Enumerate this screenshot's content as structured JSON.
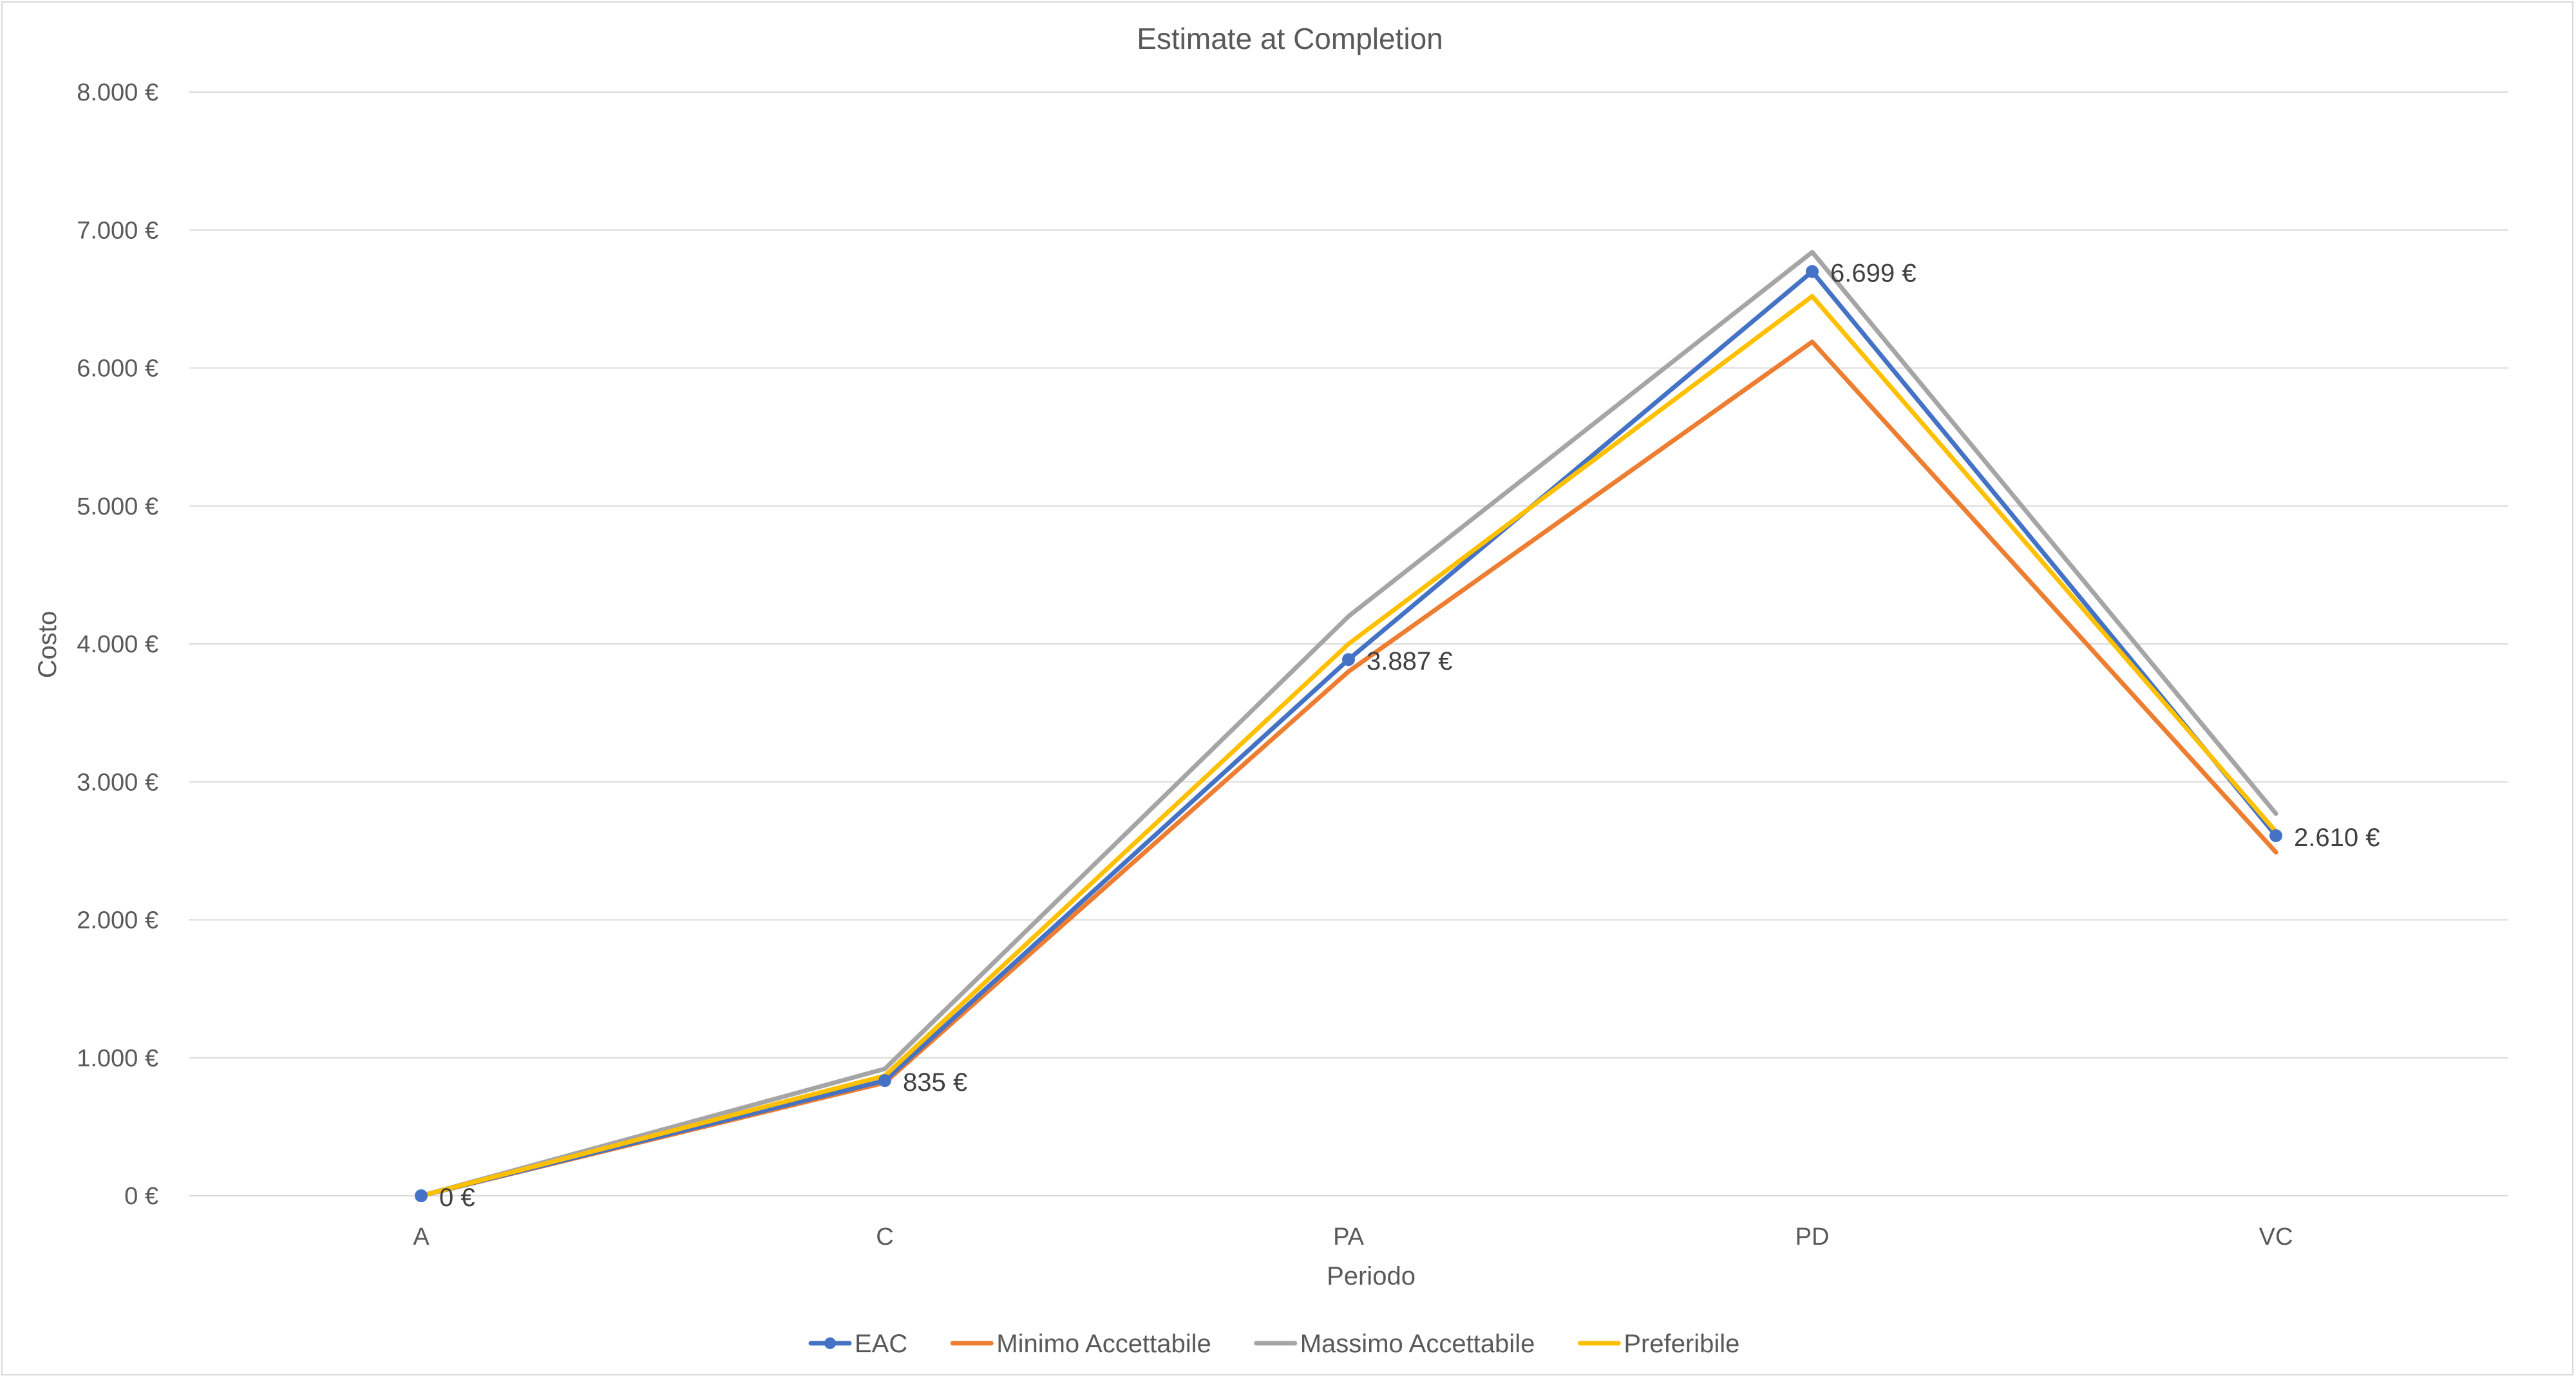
{
  "chart_data": {
    "type": "line",
    "title": "Estimate at Completion",
    "xlabel": "Periodo",
    "ylabel": "Costo",
    "categories": [
      "A",
      "C",
      "PA",
      "PD",
      "VC"
    ],
    "ylim": [
      0,
      8000
    ],
    "ytick_values": [
      0,
      1000,
      2000,
      3000,
      4000,
      5000,
      6000,
      7000,
      8000
    ],
    "ytick_labels": [
      "0 €",
      "1.000 €",
      "2.000 €",
      "3.000 €",
      "4.000 €",
      "5.000 €",
      "6.000 €",
      "7.000 €",
      "8.000 €"
    ],
    "grid": "horizontal",
    "legend_position": "bottom",
    "series": [
      {
        "name": "EAC",
        "values": [
          0,
          835,
          3887,
          6699,
          2610
        ],
        "color": "#4472C4",
        "markers": true,
        "data_labels": [
          "0 €",
          "835 €",
          "3.887 €",
          "6.699 €",
          "2.610 €"
        ]
      },
      {
        "name": "Minimo Accettabile",
        "values": [
          0,
          820,
          3800,
          6190,
          2490
        ],
        "color": "#ED7D31",
        "markers": false
      },
      {
        "name": "Massimo Accettabile",
        "values": [
          0,
          920,
          4200,
          6840,
          2770
        ],
        "color": "#A5A5A5",
        "markers": false
      },
      {
        "name": "Preferibile",
        "values": [
          0,
          870,
          4000,
          6520,
          2640
        ],
        "color": "#FFC000",
        "markers": false
      }
    ]
  }
}
